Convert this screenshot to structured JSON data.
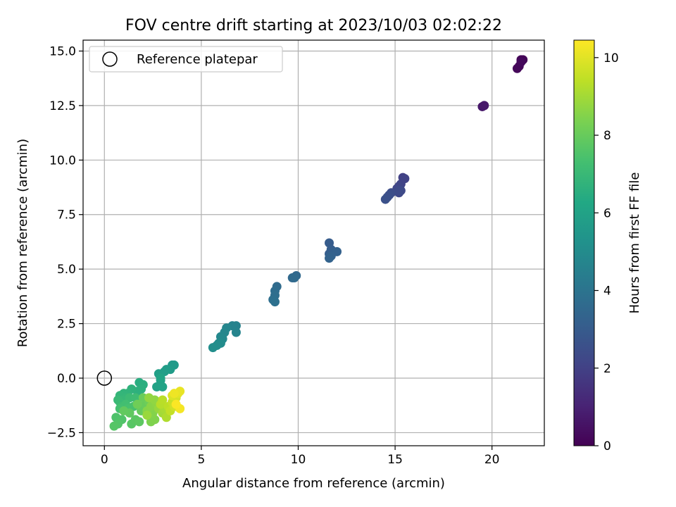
{
  "chart_data": {
    "type": "scatter",
    "title": "FOV centre drift starting at 2023/10/03 02:02:22",
    "xlabel": "Angular distance from reference (arcmin)",
    "ylabel": "Rotation from reference (arcmin)",
    "xlim": [
      -1.1,
      22.7
    ],
    "ylim": [
      -3.1,
      15.5
    ],
    "xticks": [
      0,
      5,
      10,
      15,
      20
    ],
    "xtick_labels": [
      "0",
      "5",
      "10",
      "15",
      "20"
    ],
    "yticks": [
      -2.5,
      0,
      2.5,
      5,
      7.5,
      10,
      12.5,
      15
    ],
    "ytick_labels": [
      "−2.5",
      "0.0",
      "2.5",
      "5.0",
      "7.5",
      "10.0",
      "12.5",
      "15.0"
    ],
    "grid": true,
    "legend": {
      "placement": "top-left",
      "entries": [
        "Reference platepar"
      ]
    },
    "colorbar": {
      "label": "Hours from first FF file",
      "range": [
        0,
        10.45
      ],
      "ticks": [
        0,
        2,
        4,
        6,
        8,
        10
      ],
      "tick_labels": [
        "0",
        "2",
        "4",
        "6",
        "8",
        "10"
      ],
      "colormap": "viridis"
    },
    "reference_point": {
      "x": 0,
      "y": 0,
      "label": "Reference platepar"
    },
    "series": [
      {
        "points": [
          [
            21.5,
            14.6,
            0.05
          ],
          [
            21.6,
            14.6,
            0.1
          ],
          [
            21.4,
            14.3,
            0.15
          ],
          [
            21.3,
            14.2,
            0.2
          ],
          [
            21.5,
            14.5,
            0.25
          ],
          [
            19.6,
            12.5,
            0.6
          ],
          [
            19.5,
            12.45,
            0.65
          ],
          [
            19.6,
            12.5,
            0.7
          ],
          [
            15.4,
            9.2,
            2.0
          ],
          [
            15.5,
            9.15,
            2.05
          ],
          [
            15.3,
            8.9,
            2.1
          ],
          [
            15.2,
            8.8,
            2.15
          ],
          [
            15.1,
            8.7,
            2.2
          ],
          [
            15.2,
            8.5,
            2.25
          ],
          [
            15.3,
            8.6,
            2.3
          ],
          [
            15.2,
            8.6,
            2.35
          ],
          [
            14.8,
            8.5,
            2.45
          ],
          [
            14.7,
            8.4,
            2.5
          ],
          [
            14.6,
            8.3,
            2.55
          ],
          [
            14.5,
            8.2,
            2.6
          ],
          [
            11.6,
            6.2,
            3.0
          ],
          [
            11.7,
            5.9,
            3.05
          ],
          [
            11.6,
            5.7,
            3.1
          ],
          [
            11.8,
            5.8,
            3.15
          ],
          [
            12.0,
            5.8,
            3.2
          ],
          [
            11.7,
            5.6,
            3.25
          ],
          [
            11.6,
            5.5,
            3.3
          ],
          [
            9.9,
            4.7,
            3.5
          ],
          [
            9.7,
            4.6,
            3.55
          ],
          [
            9.8,
            4.6,
            3.6
          ],
          [
            8.9,
            4.2,
            3.65
          ],
          [
            8.8,
            4.0,
            3.7
          ],
          [
            8.8,
            3.8,
            3.75
          ],
          [
            8.7,
            3.6,
            3.8
          ],
          [
            8.8,
            3.5,
            3.85
          ],
          [
            6.8,
            2.4,
            4.6
          ],
          [
            6.6,
            2.4,
            4.65
          ],
          [
            6.8,
            2.1,
            4.7
          ],
          [
            6.3,
            2.3,
            4.75
          ],
          [
            6.2,
            2.1,
            4.8
          ],
          [
            6.0,
            1.9,
            4.85
          ],
          [
            6.1,
            1.8,
            4.9
          ],
          [
            5.9,
            1.6,
            4.95
          ],
          [
            6.0,
            1.6,
            5.0
          ],
          [
            5.8,
            1.5,
            5.05
          ],
          [
            5.6,
            1.4,
            5.1
          ],
          [
            3.5,
            0.6,
            5.6
          ],
          [
            3.6,
            0.6,
            5.65
          ],
          [
            3.4,
            0.4,
            5.7
          ],
          [
            3.2,
            0.4,
            5.75
          ],
          [
            3.1,
            0.3,
            5.8
          ],
          [
            2.8,
            0.2,
            5.85
          ],
          [
            2.9,
            -0.1,
            5.9
          ],
          [
            2.7,
            -0.4,
            6.0
          ],
          [
            3.0,
            -0.4,
            6.05
          ],
          [
            2.9,
            0.0,
            6.1
          ],
          [
            1.8,
            -0.2,
            6.5
          ],
          [
            2.0,
            -0.3,
            6.55
          ],
          [
            1.9,
            -0.5,
            6.6
          ],
          [
            1.7,
            -0.6,
            6.65
          ],
          [
            1.4,
            -0.5,
            6.7
          ],
          [
            1.2,
            -0.7,
            6.75
          ],
          [
            1.0,
            -0.7,
            6.8
          ],
          [
            0.8,
            -0.8,
            6.85
          ],
          [
            1.1,
            -0.9,
            6.9
          ],
          [
            0.9,
            -1.0,
            6.95
          ],
          [
            0.7,
            -1.0,
            7.0
          ],
          [
            0.8,
            -1.1,
            7.05
          ],
          [
            1.3,
            -0.9,
            7.1
          ],
          [
            1.6,
            -0.9,
            7.15
          ],
          [
            0.9,
            -1.3,
            7.2
          ],
          [
            1.1,
            -1.2,
            7.25
          ],
          [
            0.8,
            -1.4,
            7.3
          ],
          [
            1.2,
            -1.4,
            7.35
          ],
          [
            1.5,
            -1.3,
            7.4
          ],
          [
            0.6,
            -1.8,
            7.5
          ],
          [
            0.9,
            -1.9,
            7.55
          ],
          [
            0.7,
            -2.1,
            7.6
          ],
          [
            0.5,
            -2.2,
            7.65
          ],
          [
            1.4,
            -2.1,
            7.7
          ],
          [
            1.6,
            -1.9,
            7.75
          ],
          [
            1.8,
            -2.0,
            7.8
          ],
          [
            1.3,
            -1.6,
            7.85
          ],
          [
            1.0,
            -1.5,
            7.9
          ],
          [
            1.9,
            -1.5,
            7.95
          ],
          [
            2.1,
            -1.2,
            8.0
          ],
          [
            2.0,
            -0.9,
            8.05
          ],
          [
            2.3,
            -1.1,
            8.1
          ],
          [
            1.7,
            -1.2,
            8.15
          ],
          [
            2.4,
            -2.0,
            8.4
          ],
          [
            2.6,
            -1.9,
            8.45
          ],
          [
            2.5,
            -1.6,
            8.5
          ],
          [
            2.2,
            -1.5,
            8.55
          ],
          [
            2.4,
            -1.3,
            8.6
          ],
          [
            2.7,
            -1.2,
            8.65
          ],
          [
            2.6,
            -1.0,
            8.7
          ],
          [
            2.3,
            -0.9,
            8.75
          ],
          [
            2.8,
            -1.4,
            8.8
          ],
          [
            2.2,
            -1.7,
            8.85
          ],
          [
            3.0,
            -1.6,
            9.0
          ],
          [
            3.1,
            -1.4,
            9.1
          ],
          [
            3.2,
            -1.8,
            9.2
          ],
          [
            2.9,
            -1.2,
            9.3
          ],
          [
            3.0,
            -1.0,
            9.35
          ],
          [
            3.3,
            -1.3,
            9.4
          ],
          [
            3.4,
            -1.5,
            9.5
          ],
          [
            3.5,
            -1.1,
            9.6
          ],
          [
            3.6,
            -1.3,
            9.7
          ],
          [
            3.7,
            -0.9,
            9.8
          ],
          [
            3.5,
            -0.8,
            9.9
          ],
          [
            3.8,
            -0.7,
            10.0
          ],
          [
            3.9,
            -0.6,
            10.1
          ],
          [
            3.6,
            -0.7,
            10.2
          ],
          [
            3.9,
            -1.4,
            10.3
          ],
          [
            3.7,
            -1.2,
            10.4
          ]
        ]
      }
    ]
  }
}
